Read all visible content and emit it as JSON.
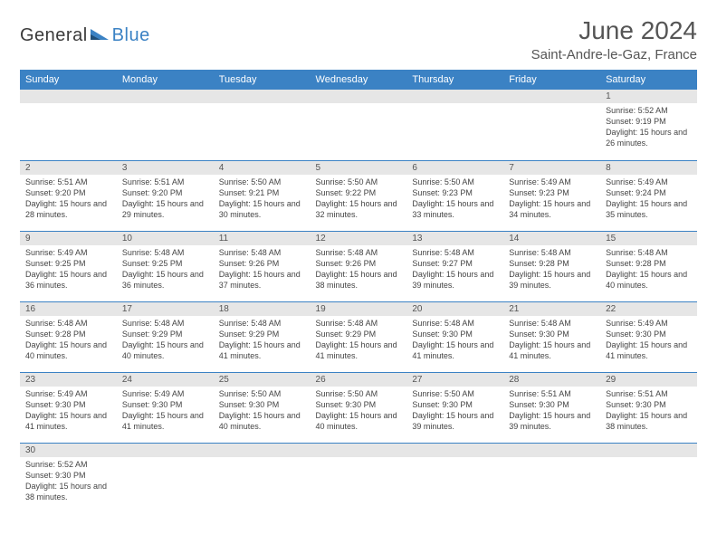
{
  "brand": {
    "part1": "General",
    "part2": "Blue"
  },
  "title": "June 2024",
  "location": "Saint-Andre-le-Gaz, France",
  "colors": {
    "header_bg": "#3b82c4",
    "header_text": "#ffffff",
    "daynum_bg": "#e6e6e6",
    "border": "#3b82c4",
    "text": "#444444"
  },
  "day_headers": [
    "Sunday",
    "Monday",
    "Tuesday",
    "Wednesday",
    "Thursday",
    "Friday",
    "Saturday"
  ],
  "weeks": [
    [
      {
        "blank": true
      },
      {
        "blank": true
      },
      {
        "blank": true
      },
      {
        "blank": true
      },
      {
        "blank": true
      },
      {
        "blank": true
      },
      {
        "n": "1",
        "sunrise": "Sunrise: 5:52 AM",
        "sunset": "Sunset: 9:19 PM",
        "daylight": "Daylight: 15 hours and 26 minutes."
      }
    ],
    [
      {
        "n": "2",
        "sunrise": "Sunrise: 5:51 AM",
        "sunset": "Sunset: 9:20 PM",
        "daylight": "Daylight: 15 hours and 28 minutes."
      },
      {
        "n": "3",
        "sunrise": "Sunrise: 5:51 AM",
        "sunset": "Sunset: 9:20 PM",
        "daylight": "Daylight: 15 hours and 29 minutes."
      },
      {
        "n": "4",
        "sunrise": "Sunrise: 5:50 AM",
        "sunset": "Sunset: 9:21 PM",
        "daylight": "Daylight: 15 hours and 30 minutes."
      },
      {
        "n": "5",
        "sunrise": "Sunrise: 5:50 AM",
        "sunset": "Sunset: 9:22 PM",
        "daylight": "Daylight: 15 hours and 32 minutes."
      },
      {
        "n": "6",
        "sunrise": "Sunrise: 5:50 AM",
        "sunset": "Sunset: 9:23 PM",
        "daylight": "Daylight: 15 hours and 33 minutes."
      },
      {
        "n": "7",
        "sunrise": "Sunrise: 5:49 AM",
        "sunset": "Sunset: 9:23 PM",
        "daylight": "Daylight: 15 hours and 34 minutes."
      },
      {
        "n": "8",
        "sunrise": "Sunrise: 5:49 AM",
        "sunset": "Sunset: 9:24 PM",
        "daylight": "Daylight: 15 hours and 35 minutes."
      }
    ],
    [
      {
        "n": "9",
        "sunrise": "Sunrise: 5:49 AM",
        "sunset": "Sunset: 9:25 PM",
        "daylight": "Daylight: 15 hours and 36 minutes."
      },
      {
        "n": "10",
        "sunrise": "Sunrise: 5:48 AM",
        "sunset": "Sunset: 9:25 PM",
        "daylight": "Daylight: 15 hours and 36 minutes."
      },
      {
        "n": "11",
        "sunrise": "Sunrise: 5:48 AM",
        "sunset": "Sunset: 9:26 PM",
        "daylight": "Daylight: 15 hours and 37 minutes."
      },
      {
        "n": "12",
        "sunrise": "Sunrise: 5:48 AM",
        "sunset": "Sunset: 9:26 PM",
        "daylight": "Daylight: 15 hours and 38 minutes."
      },
      {
        "n": "13",
        "sunrise": "Sunrise: 5:48 AM",
        "sunset": "Sunset: 9:27 PM",
        "daylight": "Daylight: 15 hours and 39 minutes."
      },
      {
        "n": "14",
        "sunrise": "Sunrise: 5:48 AM",
        "sunset": "Sunset: 9:28 PM",
        "daylight": "Daylight: 15 hours and 39 minutes."
      },
      {
        "n": "15",
        "sunrise": "Sunrise: 5:48 AM",
        "sunset": "Sunset: 9:28 PM",
        "daylight": "Daylight: 15 hours and 40 minutes."
      }
    ],
    [
      {
        "n": "16",
        "sunrise": "Sunrise: 5:48 AM",
        "sunset": "Sunset: 9:28 PM",
        "daylight": "Daylight: 15 hours and 40 minutes."
      },
      {
        "n": "17",
        "sunrise": "Sunrise: 5:48 AM",
        "sunset": "Sunset: 9:29 PM",
        "daylight": "Daylight: 15 hours and 40 minutes."
      },
      {
        "n": "18",
        "sunrise": "Sunrise: 5:48 AM",
        "sunset": "Sunset: 9:29 PM",
        "daylight": "Daylight: 15 hours and 41 minutes."
      },
      {
        "n": "19",
        "sunrise": "Sunrise: 5:48 AM",
        "sunset": "Sunset: 9:29 PM",
        "daylight": "Daylight: 15 hours and 41 minutes."
      },
      {
        "n": "20",
        "sunrise": "Sunrise: 5:48 AM",
        "sunset": "Sunset: 9:30 PM",
        "daylight": "Daylight: 15 hours and 41 minutes."
      },
      {
        "n": "21",
        "sunrise": "Sunrise: 5:48 AM",
        "sunset": "Sunset: 9:30 PM",
        "daylight": "Daylight: 15 hours and 41 minutes."
      },
      {
        "n": "22",
        "sunrise": "Sunrise: 5:49 AM",
        "sunset": "Sunset: 9:30 PM",
        "daylight": "Daylight: 15 hours and 41 minutes."
      }
    ],
    [
      {
        "n": "23",
        "sunrise": "Sunrise: 5:49 AM",
        "sunset": "Sunset: 9:30 PM",
        "daylight": "Daylight: 15 hours and 41 minutes."
      },
      {
        "n": "24",
        "sunrise": "Sunrise: 5:49 AM",
        "sunset": "Sunset: 9:30 PM",
        "daylight": "Daylight: 15 hours and 41 minutes."
      },
      {
        "n": "25",
        "sunrise": "Sunrise: 5:50 AM",
        "sunset": "Sunset: 9:30 PM",
        "daylight": "Daylight: 15 hours and 40 minutes."
      },
      {
        "n": "26",
        "sunrise": "Sunrise: 5:50 AM",
        "sunset": "Sunset: 9:30 PM",
        "daylight": "Daylight: 15 hours and 40 minutes."
      },
      {
        "n": "27",
        "sunrise": "Sunrise: 5:50 AM",
        "sunset": "Sunset: 9:30 PM",
        "daylight": "Daylight: 15 hours and 39 minutes."
      },
      {
        "n": "28",
        "sunrise": "Sunrise: 5:51 AM",
        "sunset": "Sunset: 9:30 PM",
        "daylight": "Daylight: 15 hours and 39 minutes."
      },
      {
        "n": "29",
        "sunrise": "Sunrise: 5:51 AM",
        "sunset": "Sunset: 9:30 PM",
        "daylight": "Daylight: 15 hours and 38 minutes."
      }
    ],
    [
      {
        "n": "30",
        "sunrise": "Sunrise: 5:52 AM",
        "sunset": "Sunset: 9:30 PM",
        "daylight": "Daylight: 15 hours and 38 minutes."
      },
      {
        "blank": true
      },
      {
        "blank": true
      },
      {
        "blank": true
      },
      {
        "blank": true
      },
      {
        "blank": true
      },
      {
        "blank": true
      }
    ]
  ]
}
